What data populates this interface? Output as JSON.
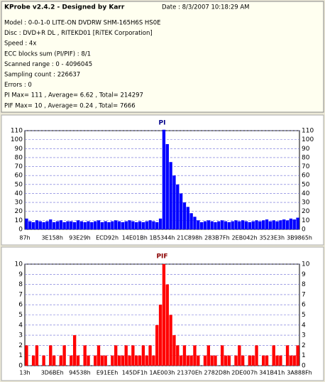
{
  "header": {
    "title": "KProbe v2.4.2 - Designed by Karr",
    "date": "Date : 8/3/2007 10:18:29 AM",
    "lines": [
      "Model : 0-0-1-0 LITE-ON DVDRW SHM-165H6S HS0E",
      "Disc : DVD+R DL , RITEKD01 [RiTEK Corporation]",
      "Speed : 4x",
      "ECC blocks sum (PI/PIF) : 8/1",
      "Scanned range : 0 - 4096045",
      "Sampling count : 226637",
      "Errors : 0",
      "PI Max= 111 , Average= 6.62 , Total= 214297",
      "PIF Max= 10 , Average= 0.24 , Total= 7666"
    ]
  },
  "chart_data": [
    {
      "type": "bar",
      "title": "PI",
      "color": "#0000ff",
      "grid": true,
      "ylim": [
        0,
        110
      ],
      "yticks": [
        0,
        10,
        20,
        30,
        40,
        50,
        60,
        70,
        80,
        90,
        100,
        110
      ],
      "xtick_labels": [
        "87h",
        "3E158h",
        "93E29h",
        "ECD92h",
        "14E01Bh",
        "1B5344h",
        "21C898h",
        "283B7Fh",
        "2EB042h",
        "3523E3h",
        "3B9865h"
      ],
      "values": [
        12,
        9,
        8,
        10,
        9,
        8,
        9,
        11,
        8,
        9,
        10,
        8,
        9,
        9,
        8,
        10,
        9,
        8,
        9,
        8,
        9,
        10,
        8,
        9,
        8,
        9,
        10,
        9,
        8,
        9,
        10,
        9,
        8,
        9,
        8,
        9,
        10,
        9,
        8,
        12,
        111,
        95,
        75,
        60,
        50,
        40,
        30,
        25,
        18,
        14,
        10,
        8,
        9,
        10,
        9,
        8,
        9,
        10,
        9,
        8,
        9,
        10,
        9,
        10,
        9,
        8,
        9,
        10,
        9,
        10,
        11,
        9,
        10,
        9,
        10,
        11,
        10,
        12,
        11,
        13
      ]
    },
    {
      "type": "bar",
      "title": "PIF",
      "color": "#ff0000",
      "grid": true,
      "ylim": [
        0,
        10
      ],
      "yticks": [
        0,
        1,
        2,
        3,
        4,
        5,
        6,
        7,
        8,
        9,
        10
      ],
      "xtick_labels": [
        "13h",
        "3D6BEh",
        "94538h",
        "E91EEh",
        "145DF1h",
        "1AE003h",
        "21370Eh",
        "2782D8h",
        "2DE007h",
        "341B41h",
        "3A888Fh"
      ],
      "values": [
        2,
        0,
        1,
        2,
        0,
        1,
        0,
        2,
        1,
        0,
        1,
        2,
        0,
        1,
        3,
        1,
        0,
        2,
        1,
        0,
        1,
        2,
        1,
        1,
        0,
        1,
        2,
        1,
        1,
        2,
        1,
        2,
        1,
        1,
        2,
        1,
        2,
        1,
        4,
        6,
        10,
        8,
        5,
        3,
        2,
        1,
        2,
        1,
        1,
        2,
        1,
        0,
        1,
        2,
        1,
        1,
        0,
        2,
        1,
        1,
        0,
        1,
        2,
        1,
        0,
        1,
        1,
        2,
        0,
        1,
        1,
        0,
        2,
        1,
        1,
        0,
        2,
        1,
        1,
        2
      ]
    }
  ]
}
